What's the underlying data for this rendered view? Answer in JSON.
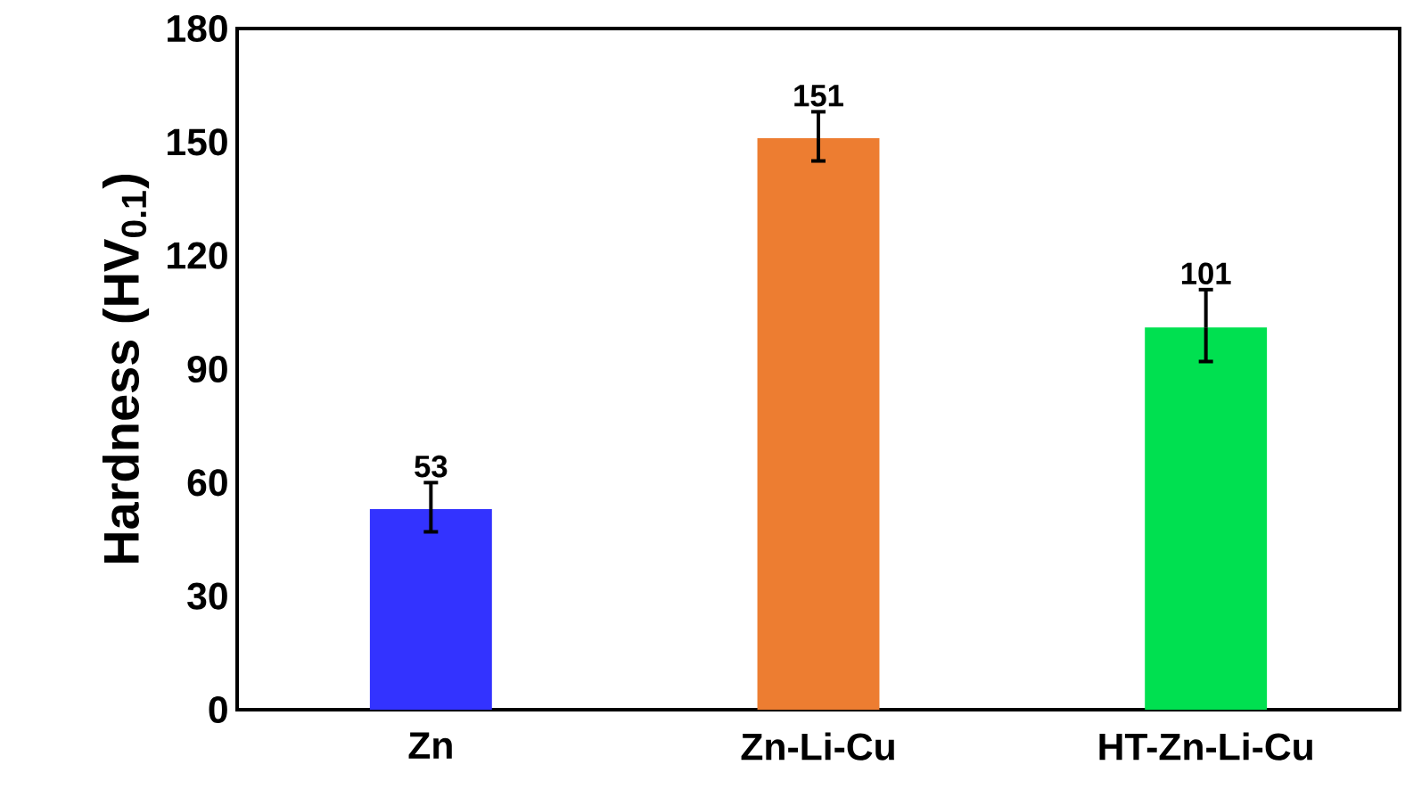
{
  "chart_data": {
    "type": "bar",
    "ylabel": "Hardness (HV$_{0.1}$)",
    "categories": [
      "Zn",
      "Zn-Li-Cu",
      "HT-Zn-Li-Cu"
    ],
    "values": [
      53,
      151,
      101
    ],
    "colors": [
      "#3333ff",
      "#ed7d31",
      "#00e050"
    ],
    "errors": [
      [
        47,
        60
      ],
      [
        145,
        158
      ],
      [
        92,
        111
      ]
    ],
    "value_labels": [
      "53",
      "151",
      "101"
    ],
    "ylim": [
      0,
      180
    ],
    "yticks": [
      0,
      30,
      60,
      90,
      120,
      150,
      180
    ]
  }
}
